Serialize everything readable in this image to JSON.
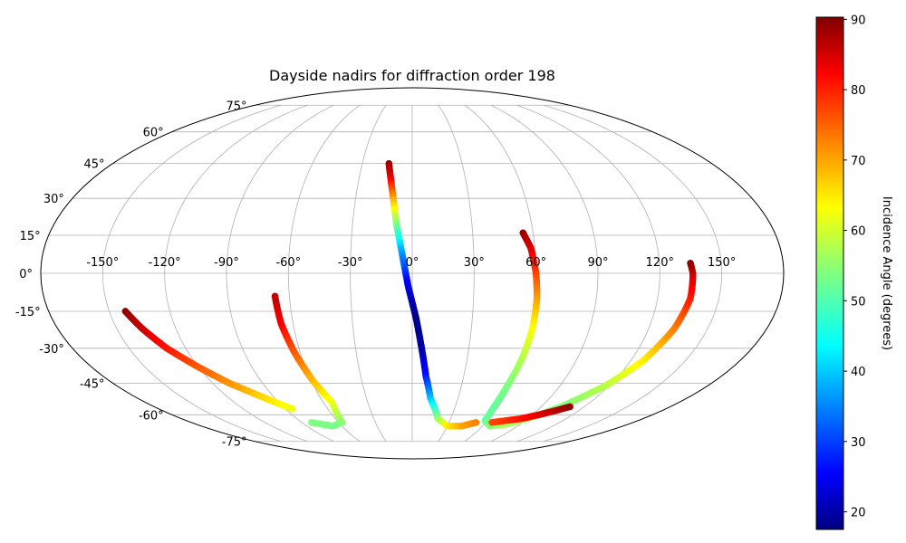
{
  "chart_data": {
    "type": "scatter",
    "projection": "mollweide",
    "title": "Dayside nadirs for diffraction order 198",
    "lon_ticks": [
      "-150°",
      "-120°",
      "-90°",
      "-60°",
      "-30°",
      "0°",
      "30°",
      "60°",
      "90°",
      "120°",
      "150°"
    ],
    "lat_ticks": [
      "75°",
      "60°",
      "45°",
      "30°",
      "15°",
      "0°",
      "-15°",
      "-30°",
      "-45°",
      "-60°",
      "-75°"
    ],
    "grid": true,
    "xlim": [
      -180,
      180
    ],
    "ylim": [
      -90,
      90
    ],
    "colorbar": {
      "label": "Incidence Angle (degrees)",
      "colormap": "jet",
      "vmin": 17.5,
      "vmax": 90.3,
      "ticks": [
        "90",
        "80",
        "70",
        "60",
        "50",
        "40",
        "30",
        "20"
      ]
    },
    "series": [
      {
        "points": [
          {
            "lon": -142,
            "lat": -15,
            "inc": 89
          },
          {
            "lon": -137,
            "lat": -22,
            "inc": 85
          },
          {
            "lon": -130,
            "lat": -30,
            "inc": 80
          },
          {
            "lon": -120,
            "lat": -38,
            "inc": 75
          },
          {
            "lon": -110,
            "lat": -45,
            "inc": 71
          },
          {
            "lon": -100,
            "lat": -50,
            "inc": 67
          },
          {
            "lon": -92,
            "lat": -54,
            "inc": 64
          },
          {
            "lon": -85,
            "lat": -57,
            "inc": 62
          }
        ]
      },
      {
        "points": [
          {
            "lon": -67,
            "lat": -9,
            "inc": 86
          },
          {
            "lon": -66,
            "lat": -20,
            "inc": 82
          },
          {
            "lon": -63,
            "lat": -32,
            "inc": 75
          },
          {
            "lon": -59,
            "lat": -44,
            "inc": 68
          },
          {
            "lon": -54,
            "lat": -54,
            "inc": 62
          },
          {
            "lon": -57,
            "lat": -64,
            "inc": 55
          },
          {
            "lon": -68,
            "lat": -66,
            "inc": 53
          },
          {
            "lon": -82,
            "lat": -64,
            "inc": 54
          }
        ]
      },
      {
        "points": [
          {
            "lon": -14,
            "lat": 45,
            "inc": 89
          },
          {
            "lon": -12,
            "lat": 38,
            "inc": 82
          },
          {
            "lon": -10,
            "lat": 30,
            "inc": 70
          },
          {
            "lon": -8,
            "lat": 20,
            "inc": 55
          },
          {
            "lon": -5,
            "lat": 8,
            "inc": 38
          },
          {
            "lon": -2,
            "lat": -5,
            "inc": 25
          },
          {
            "lon": 2,
            "lat": -18,
            "inc": 18
          },
          {
            "lon": 5,
            "lat": -30,
            "inc": 20
          },
          {
            "lon": 8,
            "lat": -42,
            "inc": 28
          },
          {
            "lon": 12,
            "lat": -52,
            "inc": 40
          },
          {
            "lon": 20,
            "lat": -62,
            "inc": 55
          },
          {
            "lon": 30,
            "lat": -66,
            "inc": 64
          },
          {
            "lon": 42,
            "lat": -66,
            "inc": 69
          },
          {
            "lon": 52,
            "lat": -64,
            "inc": 72
          }
        ]
      },
      {
        "points": [
          {
            "lon": 55,
            "lat": 16,
            "inc": 89
          },
          {
            "lon": 58,
            "lat": 10,
            "inc": 84
          },
          {
            "lon": 60,
            "lat": 0,
            "inc": 77
          },
          {
            "lon": 61,
            "lat": -10,
            "inc": 70
          },
          {
            "lon": 61,
            "lat": -22,
            "inc": 63
          },
          {
            "lon": 60,
            "lat": -34,
            "inc": 58
          },
          {
            "lon": 58,
            "lat": -46,
            "inc": 54
          },
          {
            "lon": 57,
            "lat": -56,
            "inc": 52
          },
          {
            "lon": 58,
            "lat": -63,
            "inc": 52
          },
          {
            "lon": 66,
            "lat": -66,
            "inc": 54
          },
          {
            "lon": 78,
            "lat": -65,
            "inc": 57
          },
          {
            "lon": 90,
            "lat": -62,
            "inc": 56
          },
          {
            "lon": 104,
            "lat": -56,
            "inc": 54
          },
          {
            "lon": 118,
            "lat": -46,
            "inc": 58
          },
          {
            "lon": 127,
            "lat": -35,
            "inc": 64
          },
          {
            "lon": 133,
            "lat": -22,
            "inc": 72
          },
          {
            "lon": 136,
            "lat": -10,
            "inc": 79
          },
          {
            "lon": 136,
            "lat": 0,
            "inc": 84
          },
          {
            "lon": 135,
            "lat": 4,
            "inc": 89
          }
        ]
      },
      {
        "points": [
          {
            "lon": 65,
            "lat": -64,
            "inc": 76
          },
          {
            "lon": 75,
            "lat": -63,
            "inc": 78
          },
          {
            "lon": 85,
            "lat": -62,
            "inc": 80
          },
          {
            "lon": 95,
            "lat": -60,
            "inc": 83
          },
          {
            "lon": 103,
            "lat": -58,
            "inc": 86
          },
          {
            "lon": 110,
            "lat": -56,
            "inc": 89
          }
        ]
      }
    ]
  }
}
